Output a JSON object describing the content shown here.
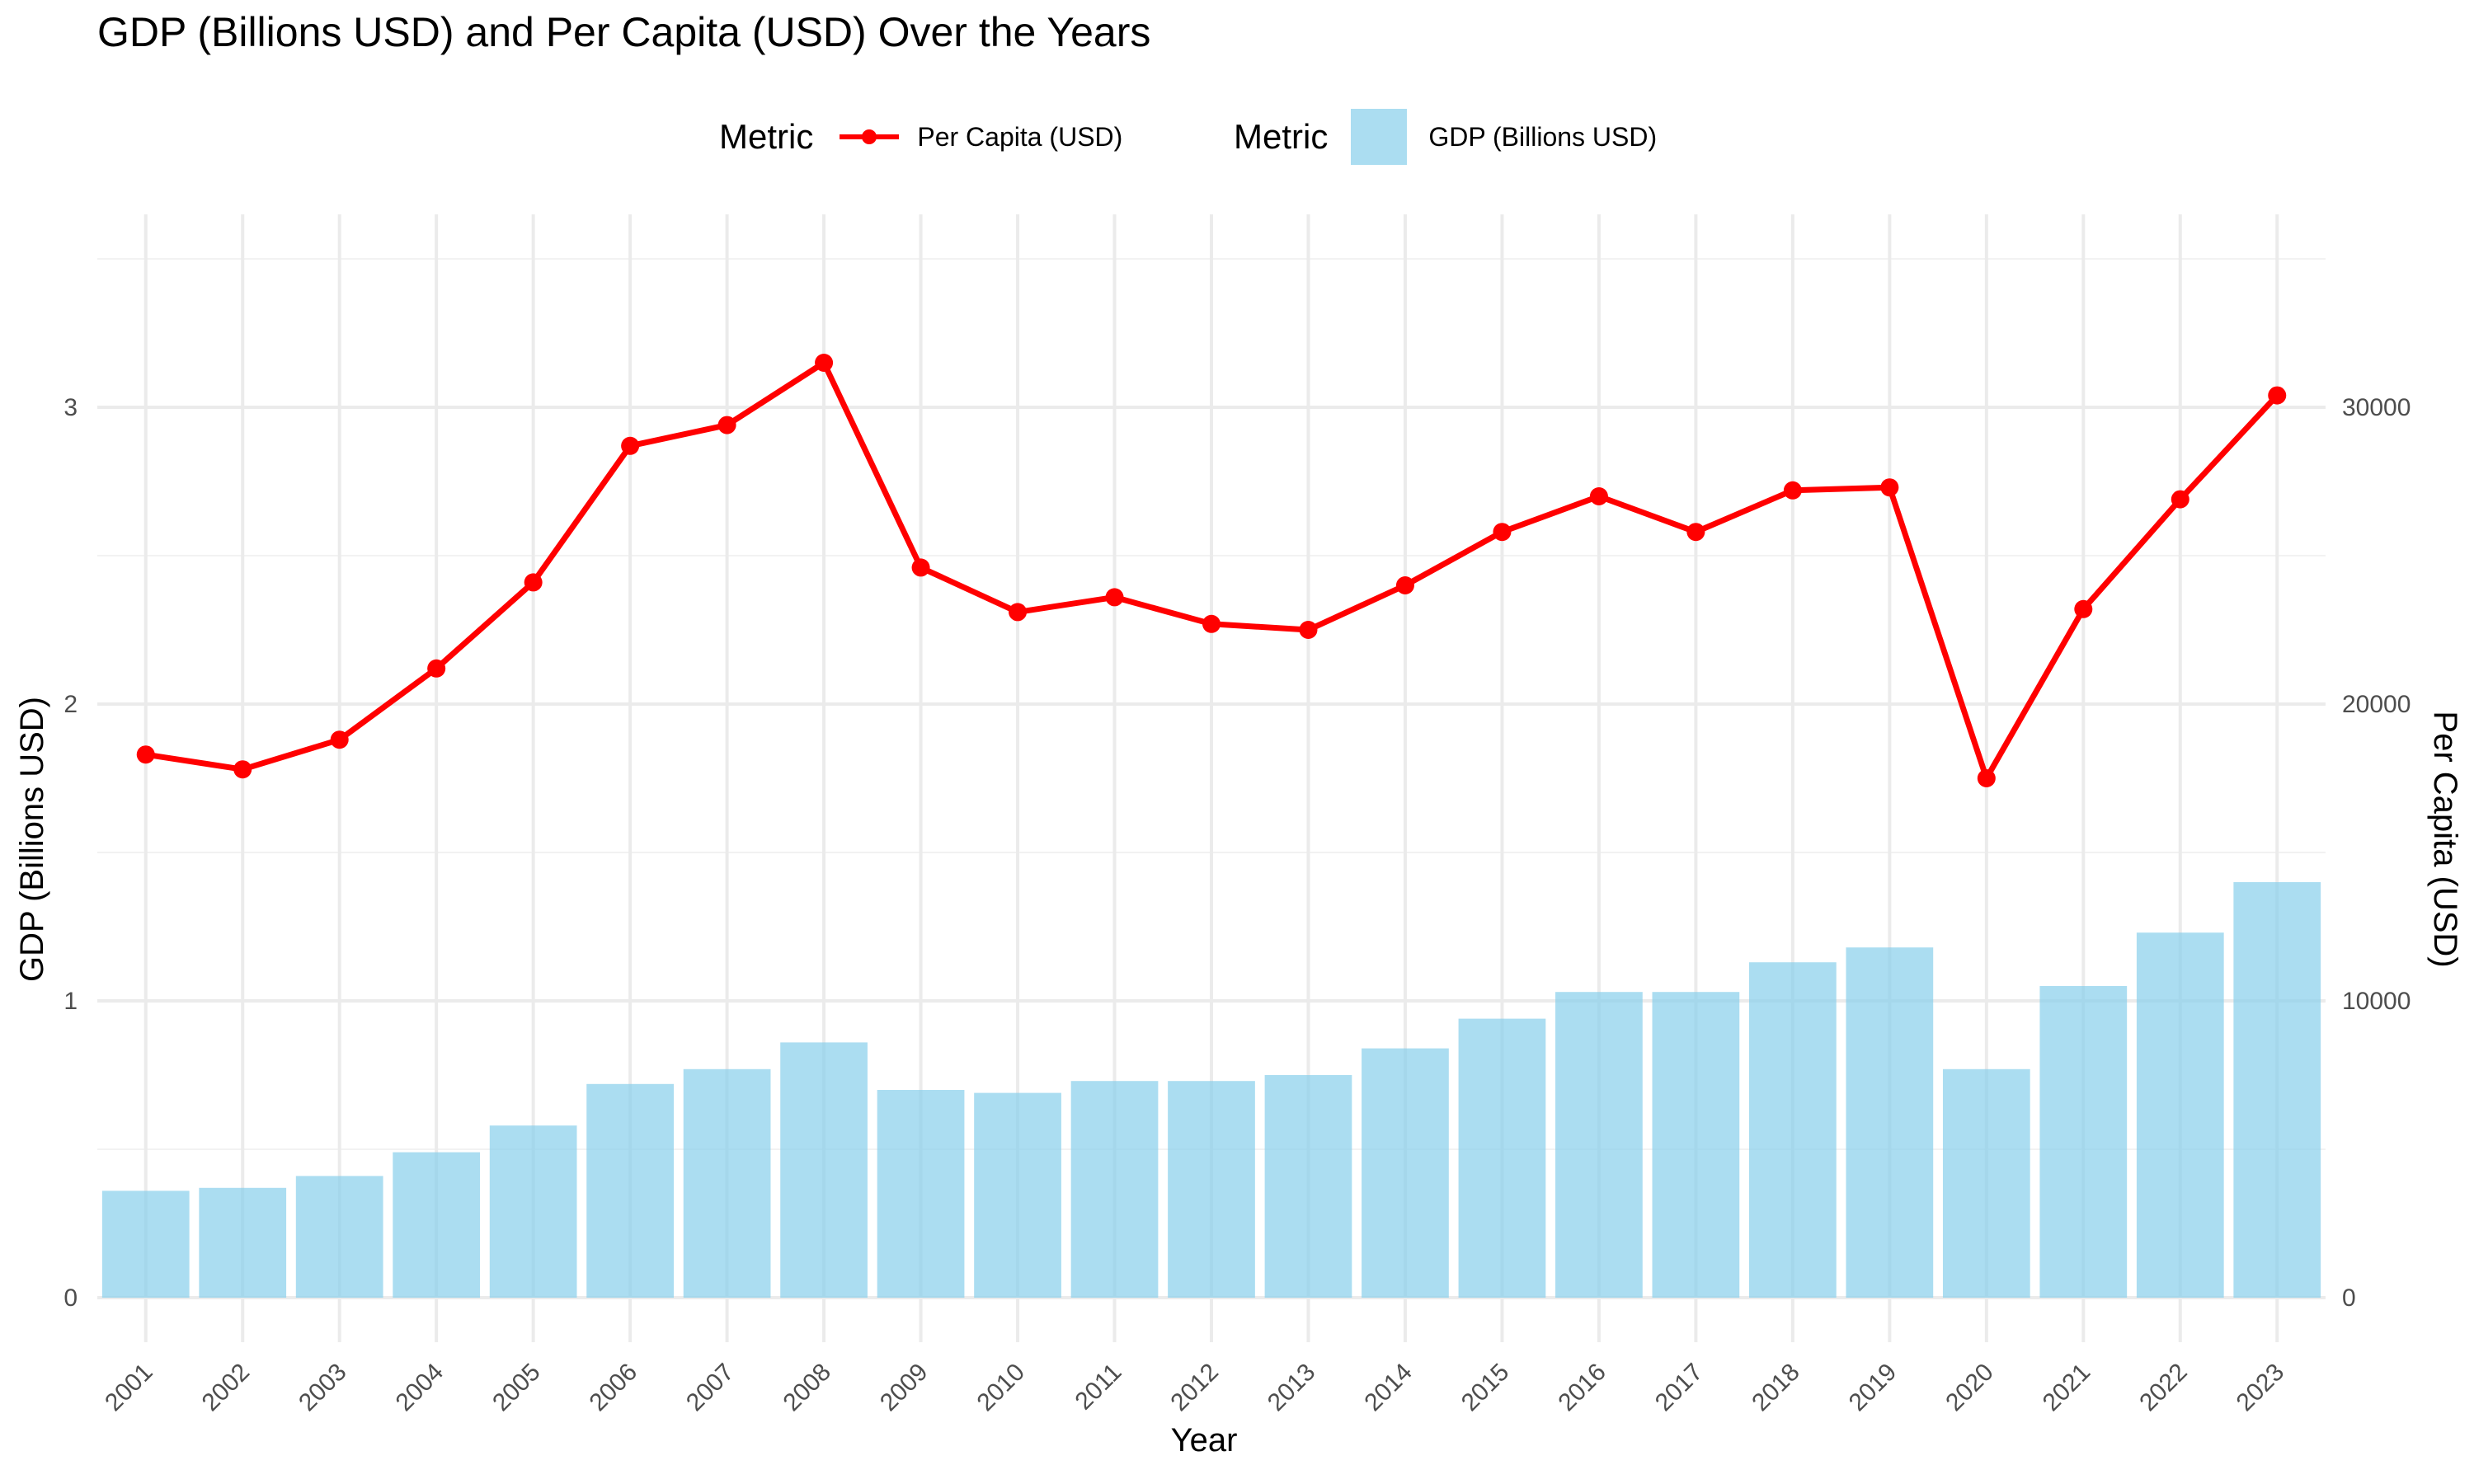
{
  "chart_data": {
    "type": "bar",
    "title": "GDP (Billions USD) and Per Capita (USD) Over the Years",
    "xlabel": "Year",
    "ylabel": "GDP (Billions USD)",
    "y2label": "Per Capita (USD)",
    "categories": [
      "2001",
      "2002",
      "2003",
      "2004",
      "2005",
      "2006",
      "2007",
      "2008",
      "2009",
      "2010",
      "2011",
      "2012",
      "2013",
      "2014",
      "2015",
      "2016",
      "2017",
      "2018",
      "2019",
      "2020",
      "2021",
      "2022",
      "2023"
    ],
    "series": [
      {
        "name": "GDP (Billions USD)",
        "type": "bar",
        "axis": "left",
        "color": "#87CEEB",
        "values": [
          0.36,
          0.37,
          0.41,
          0.49,
          0.58,
          0.72,
          0.77,
          0.86,
          0.7,
          0.69,
          0.73,
          0.73,
          0.75,
          0.84,
          0.94,
          1.03,
          1.03,
          1.13,
          1.18,
          0.77,
          1.05,
          1.23,
          1.4
        ]
      },
      {
        "name": "Per Capita (USD)",
        "type": "line",
        "axis": "right",
        "color": "#FF0000",
        "values": [
          18300,
          17800,
          18800,
          21200,
          24100,
          28700,
          29400,
          31500,
          24600,
          23100,
          23600,
          22700,
          22500,
          24000,
          25800,
          27000,
          25800,
          27200,
          27300,
          17500,
          23200,
          26900,
          30400
        ]
      }
    ],
    "ylim": [
      -0.15,
      3.65
    ],
    "yticks": [
      0,
      1,
      2,
      3
    ],
    "y2ticks": [
      0,
      10000,
      20000,
      30000
    ],
    "grid": true,
    "legend": {
      "position": "top",
      "groups": [
        {
          "title": "Metric",
          "label": "Per Capita (USD)"
        },
        {
          "title": "Metric",
          "label": "GDP (Billions USD)"
        }
      ]
    }
  }
}
